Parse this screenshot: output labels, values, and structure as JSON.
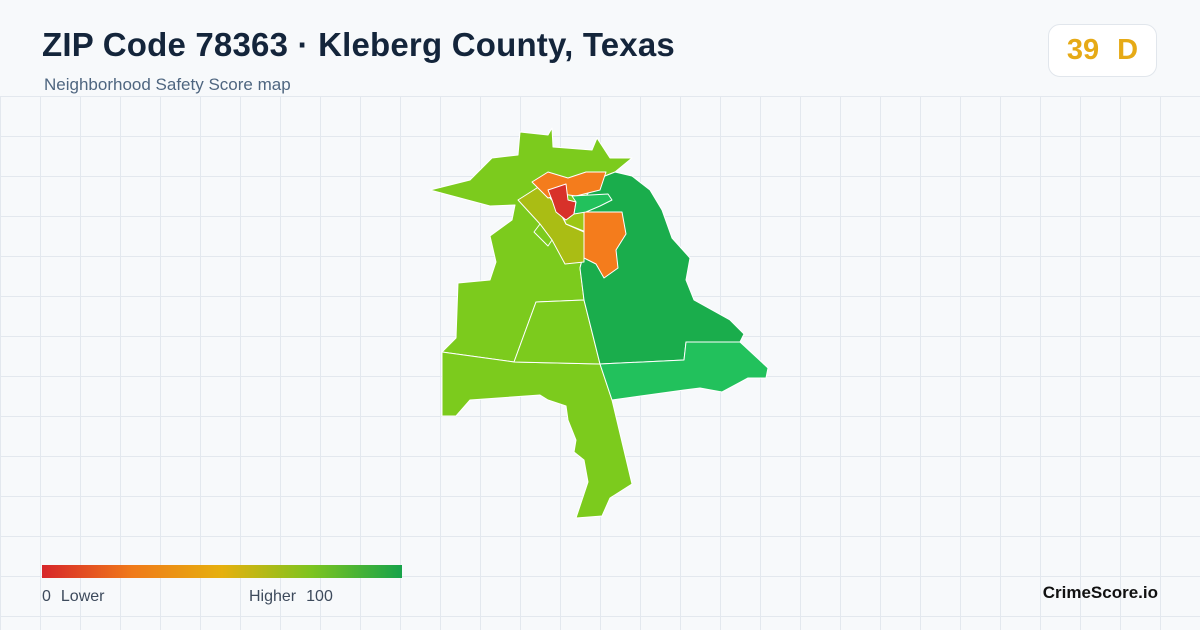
{
  "header": {
    "title": "ZIP Code 78363 · Kleberg County, Texas",
    "subtitle": "Neighborhood Safety Score map"
  },
  "score": {
    "value": "39",
    "grade": "D",
    "color": "#e6aa16"
  },
  "legend": {
    "min_value": "0",
    "min_label": "Lower",
    "max_label": "Higher",
    "max_value": "100",
    "colors": [
      "#d7262a",
      "#f07a1a",
      "#e6b00e",
      "#7cc41f",
      "#17a34a"
    ]
  },
  "map": {
    "region_colors": {
      "lime": "#7ccb1d",
      "green": "#1aad4c",
      "light_green": "#22c15c",
      "orange": "#f47c1c",
      "red": "#d8312a",
      "olive": "#aabd14",
      "yellow_green": "#9cc716"
    }
  },
  "brand": "CrimeScore.io"
}
